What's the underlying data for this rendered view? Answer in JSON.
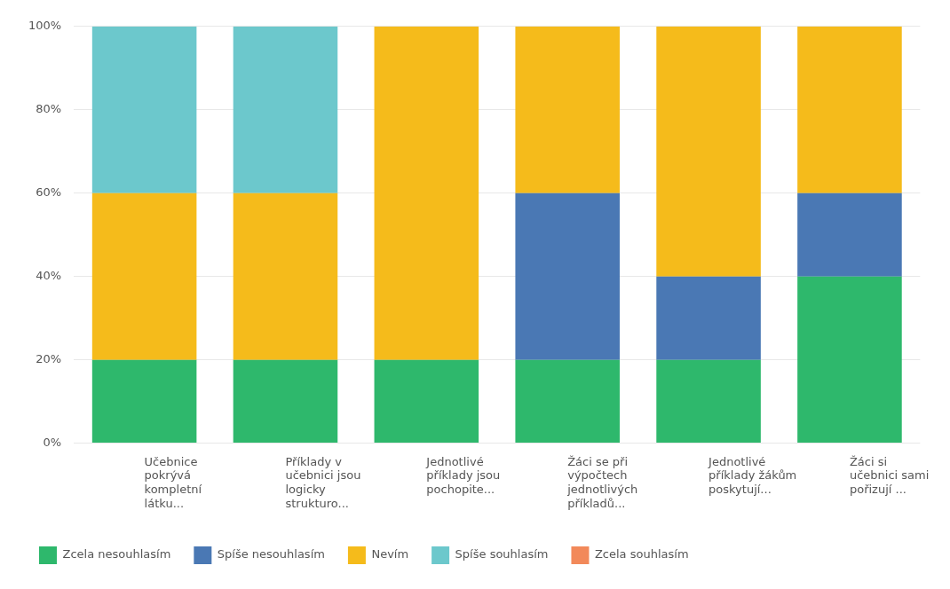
{
  "chart_data": {
    "type": "bar",
    "stacked": true,
    "categories": [
      "Učebnice pokrývá kompletní látku...",
      "Příklady v učebnici jsou logicky strukturo...",
      "Jednotlivé příklady jsou pochopite...",
      "Žáci se při výpočtech jednotlivých příkladů...",
      "Jednotlivé příklady žákům poskytují...",
      "Žáci si učebnici sami pořizují ..."
    ],
    "series": [
      {
        "name": "Zcela nesouhlasím",
        "color": "#2eb86c",
        "values": [
          20,
          20,
          20,
          20,
          20,
          40
        ]
      },
      {
        "name": "Spíše nesouhlasím",
        "color": "#4a78b4",
        "values": [
          0,
          0,
          0,
          40,
          20,
          20
        ]
      },
      {
        "name": "Nevím",
        "color": "#f5bb1b",
        "values": [
          40,
          40,
          80,
          40,
          60,
          40
        ]
      },
      {
        "name": "Spíše souhlasím",
        "color": "#6cc8cc",
        "values": [
          40,
          40,
          0,
          0,
          0,
          0
        ]
      },
      {
        "name": "Zcela souhlasím",
        "color": "#f2895a",
        "values": [
          0,
          0,
          0,
          0,
          0,
          0
        ]
      }
    ],
    "ylim": [
      0,
      100
    ],
    "yticks": [
      {
        "value": 0,
        "label": "0%"
      },
      {
        "value": 20,
        "label": "20%"
      },
      {
        "value": 40,
        "label": "40%"
      },
      {
        "value": 60,
        "label": "60%"
      },
      {
        "value": 80,
        "label": "80%"
      },
      {
        "value": 100,
        "label": "100%"
      }
    ],
    "grid": "y",
    "legend": "bottom"
  }
}
